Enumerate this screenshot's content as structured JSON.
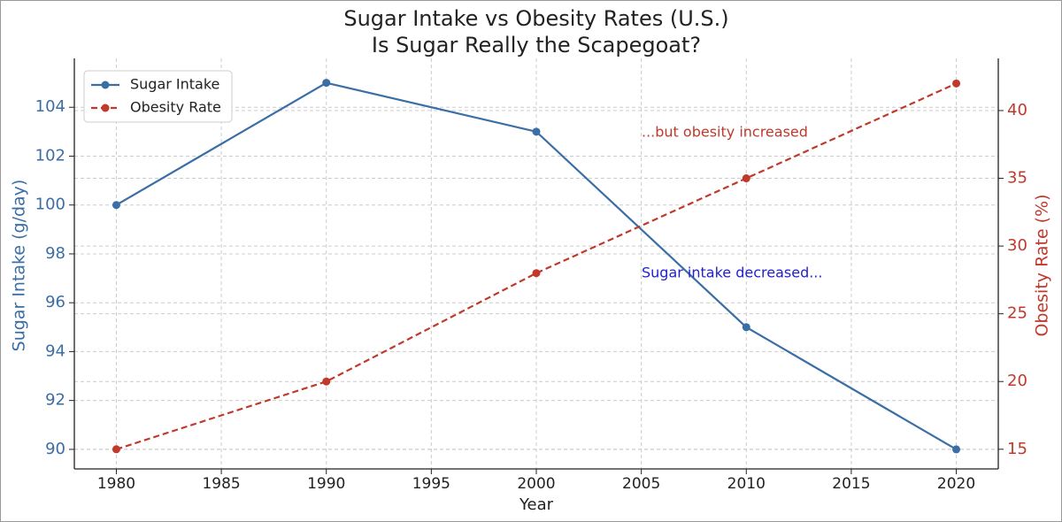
{
  "chart_data": {
    "type": "line",
    "title": "Sugar Intake vs Obesity Rates (U.S.)",
    "subtitle": "Is Sugar Really the Scapegoat?",
    "x_label": "Year",
    "y_label": "Sugar Intake (g/day)",
    "y2_label": "Obesity Rate (%)",
    "x": [
      1980,
      1990,
      2000,
      2010,
      2020
    ],
    "series": [
      {
        "name": "Sugar Intake",
        "color": "#3a6ea5",
        "values": [
          100,
          105,
          103,
          95,
          90
        ],
        "dash": false
      },
      {
        "name": "Obesity Rate",
        "color": "#c0392b",
        "values": [
          15,
          20,
          28,
          35,
          42
        ],
        "axis": "y2",
        "dash": true
      }
    ],
    "xlim": [
      1978,
      2022
    ],
    "xticks": [
      1980,
      1985,
      1990,
      1995,
      2000,
      2005,
      2010,
      2015,
      2020
    ],
    "ylim": [
      89.2,
      106.0
    ],
    "yticks": [
      90,
      92,
      94,
      96,
      98,
      100,
      102,
      104
    ],
    "y2lim": [
      13.55,
      43.85
    ],
    "y2ticks": [
      15,
      20,
      25,
      30,
      35,
      40
    ],
    "annotations": [
      {
        "text": "...but obesity increased",
        "color": "#c0392b"
      },
      {
        "text": "Sugar intake decreased...",
        "color": "#2222cc"
      }
    ],
    "grid": true,
    "legend": "upper left"
  }
}
